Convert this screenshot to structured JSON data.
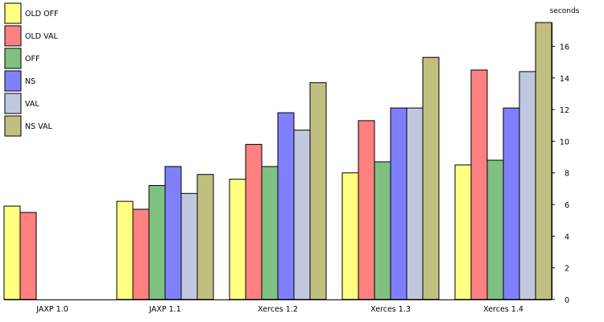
{
  "chart_data": {
    "type": "bar",
    "categories": [
      "JAXP 1.0",
      "JAXP 1.1",
      "Xerces 1.2",
      "Xerces 1.3",
      "Xerces 1.4"
    ],
    "series": [
      {
        "name": "OLD OFF",
        "color": "#ffff80",
        "values": [
          5.9,
          6.2,
          7.6,
          8.0,
          8.5
        ]
      },
      {
        "name": "OLD VAL",
        "color": "#ff8080",
        "values": [
          5.5,
          5.7,
          9.8,
          11.3,
          14.5
        ]
      },
      {
        "name": "OFF",
        "color": "#80c080",
        "values": [
          null,
          7.2,
          8.4,
          8.7,
          8.8
        ]
      },
      {
        "name": "NS",
        "color": "#8080ff",
        "values": [
          null,
          8.4,
          11.8,
          12.1,
          12.1
        ]
      },
      {
        "name": "VAL",
        "color": "#c0c8e0",
        "values": [
          null,
          6.7,
          10.7,
          12.1,
          14.4
        ]
      },
      {
        "name": "NS VAL",
        "color": "#c0c080",
        "values": [
          null,
          7.9,
          13.7,
          15.3,
          17.5
        ]
      }
    ],
    "ylabel": "seconds",
    "ylim": [
      0,
      17.5
    ],
    "yticks": [
      0,
      2,
      4,
      6,
      8,
      10,
      12,
      14,
      16
    ],
    "grid": false,
    "legend_position": "top-left"
  }
}
